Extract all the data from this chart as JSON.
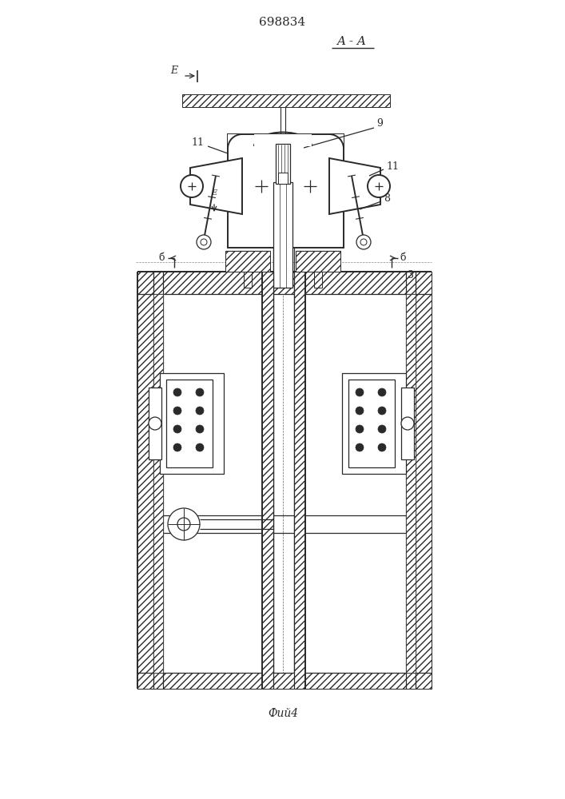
{
  "title": "698834",
  "section_label": "A - A",
  "fig_label": "Фий4",
  "bg_color": "#ffffff",
  "line_color": "#2a2a2a",
  "lw": 0.9,
  "lw2": 1.4
}
